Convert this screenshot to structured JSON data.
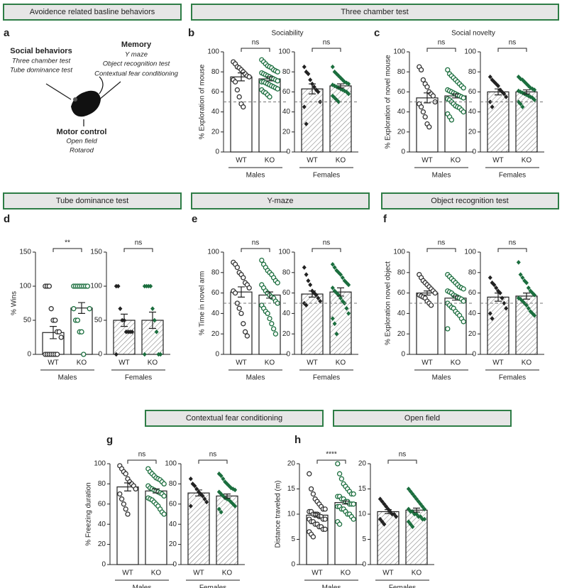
{
  "headers": [
    "Avoidence related basline behaviors",
    "Three chamber test",
    "Tube dominance test",
    "Y-maze",
    "Object recognition test",
    "Contextual fear conditioning",
    "Open field"
  ],
  "diagram": {
    "letter": "a",
    "social": {
      "title": "Social behaviors",
      "items": [
        "Three chamber test",
        "Tube dominance test"
      ]
    },
    "memory": {
      "title": "Memory",
      "items": [
        "Y maze",
        "Object recognition test",
        "Contextual fear conditioning"
      ]
    },
    "motor": {
      "title": "Motor control",
      "items": [
        "Open field",
        "Rotarod"
      ]
    }
  },
  "chart_data": [
    {
      "type": "bar",
      "letter": "b",
      "title": "Sociability",
      "ylabel": "% Exploration of mouse",
      "ylim": [
        0,
        100
      ],
      "yticks": [
        0,
        20,
        40,
        60,
        80,
        100
      ],
      "reference_line": 50,
      "groups": [
        {
          "name": "Males",
          "categories": [
            "WT",
            "KO"
          ],
          "values": [
            75,
            73
          ],
          "errors": [
            4,
            2
          ],
          "significance": "ns",
          "colors": [
            "#333333",
            "#1b6e3e"
          ],
          "marker": "circle",
          "hatch": false,
          "points": [
            [
              90,
              88,
              85,
              84,
              82,
              80,
              78,
              76,
              75,
              72,
              70,
              62,
              55,
              48,
              45
            ],
            [
              92,
              90,
              88,
              86,
              85,
              84,
              82,
              81,
              80,
              79,
              78,
              77,
              76,
              75,
              74,
              73,
              72,
              71,
              70,
              70,
              69,
              68,
              67,
              66,
              65,
              64,
              63,
              62,
              60,
              59,
              57,
              55
            ]
          ]
        },
        {
          "name": "Females",
          "categories": [
            "WT",
            "KO"
          ],
          "values": [
            63,
            66
          ],
          "errors": [
            5,
            2
          ],
          "significance": "ns",
          "colors": [
            "#222222",
            "#1b6e3e"
          ],
          "marker": "diamond",
          "hatch": true,
          "points": [
            [
              85,
              80,
              78,
              72,
              68,
              65,
              62,
              60,
              50,
              45,
              28
            ],
            [
              85,
              80,
              78,
              76,
              74,
              72,
              70,
              69,
              68,
              67,
              66,
              65,
              64,
              63,
              62,
              61,
              60,
              58,
              56,
              54,
              52,
              50
            ]
          ]
        }
      ]
    },
    {
      "type": "bar",
      "letter": "c",
      "title": "Social novelty",
      "ylabel": "% Exploration of novel mouse",
      "ylim": [
        0,
        100
      ],
      "yticks": [
        0,
        20,
        40,
        60,
        80,
        100
      ],
      "reference_line": 50,
      "groups": [
        {
          "name": "Males",
          "categories": [
            "WT",
            "KO"
          ],
          "values": [
            54,
            56
          ],
          "errors": [
            5,
            2
          ],
          "significance": "ns",
          "colors": [
            "#333333",
            "#1b6e3e"
          ],
          "marker": "circle",
          "hatch": false,
          "points": [
            [
              85,
              82,
              72,
              68,
              65,
              60,
              58,
              56,
              50,
              48,
              45,
              40,
              35,
              28,
              25
            ],
            [
              82,
              78,
              76,
              74,
              72,
              70,
              68,
              66,
              64,
              62,
              61,
              60,
              59,
              58,
              57,
              56,
              55,
              54,
              53,
              52,
              50,
              48,
              46,
              45,
              44,
              42,
              40,
              38,
              35,
              32
            ]
          ]
        },
        {
          "name": "Females",
          "categories": [
            "WT",
            "KO"
          ],
          "values": [
            60,
            60
          ],
          "errors": [
            3,
            2
          ],
          "significance": "ns",
          "colors": [
            "#222222",
            "#1b6e3e"
          ],
          "marker": "diamond",
          "hatch": true,
          "points": [
            [
              75,
              72,
              70,
              68,
              66,
              62,
              60,
              58,
              55,
              50,
              45
            ],
            [
              75,
              73,
              72,
              70,
              68,
              66,
              64,
              63,
              62,
              61,
              60,
              59,
              58,
              57,
              56,
              55,
              54,
              52,
              50,
              48,
              45
            ]
          ]
        }
      ]
    },
    {
      "type": "bar",
      "letter": "d",
      "ylabel": "% Wins",
      "ylim": [
        0,
        150
      ],
      "yticks": [
        0,
        50,
        100,
        150
      ],
      "groups": [
        {
          "name": "Males",
          "categories": [
            "WT",
            "KO"
          ],
          "values": [
            32,
            68
          ],
          "errors": [
            9,
            8
          ],
          "significance": "**",
          "colors": [
            "#333333",
            "#1b6e3e"
          ],
          "marker": "circle",
          "hatch": false,
          "points": [
            [
              100,
              100,
              100,
              67,
              50,
              50,
              33,
              33,
              25,
              0,
              0,
              0,
              0,
              0,
              0,
              0
            ],
            [
              100,
              100,
              100,
              100,
              100,
              100,
              100,
              100,
              67,
              67,
              50,
              50,
              33,
              33,
              0
            ]
          ]
        },
        {
          "name": "Females",
          "categories": [
            "WT",
            "KO"
          ],
          "values": [
            50,
            50
          ],
          "errors": [
            9,
            12
          ],
          "significance": "ns",
          "colors": [
            "#222222",
            "#1b6e3e"
          ],
          "marker": "diamond",
          "hatch": true,
          "points": [
            [
              100,
              100,
              67,
              50,
              50,
              33,
              33,
              33,
              33,
              0
            ],
            [
              100,
              100,
              100,
              100,
              67,
              50,
              33,
              0,
              0,
              0
            ]
          ]
        }
      ]
    },
    {
      "type": "bar",
      "letter": "e",
      "ylabel": "% Time in novel arm",
      "ylim": [
        0,
        100
      ],
      "yticks": [
        0,
        20,
        40,
        60,
        80,
        100
      ],
      "reference_line": 50,
      "groups": [
        {
          "name": "Males",
          "categories": [
            "WT",
            "KO"
          ],
          "values": [
            61,
            58
          ],
          "errors": [
            5,
            3
          ],
          "significance": "ns",
          "colors": [
            "#333333",
            "#1b6e3e"
          ],
          "marker": "circle",
          "hatch": false,
          "points": [
            [
              90,
              88,
              85,
              80,
              78,
              75,
              70,
              68,
              65,
              62,
              60,
              50,
              45,
              40,
              30,
              22,
              18
            ],
            [
              92,
              88,
              85,
              82,
              80,
              78,
              75,
              72,
              70,
              68,
              65,
              62,
              60,
              58,
              56,
              55,
              52,
              50,
              48,
              45,
              42,
              40,
              35,
              30,
              25,
              20
            ]
          ]
        },
        {
          "name": "Females",
          "categories": [
            "WT",
            "KO"
          ],
          "values": [
            59,
            61
          ],
          "errors": [
            3,
            4
          ],
          "significance": "ns",
          "colors": [
            "#222222",
            "#1b6e3e"
          ],
          "marker": "diamond",
          "hatch": true,
          "points": [
            [
              85,
              78,
              72,
              68,
              62,
              60,
              58,
              55,
              52,
              50,
              48
            ],
            [
              88,
              85,
              82,
              80,
              78,
              75,
              72,
              70,
              68,
              65,
              62,
              60,
              58,
              55,
              52,
              50,
              45,
              40,
              35,
              30,
              20
            ]
          ]
        }
      ]
    },
    {
      "type": "bar",
      "letter": "f",
      "ylabel": "% Exploration novel object",
      "ylim": [
        0,
        100
      ],
      "yticks": [
        0,
        20,
        40,
        60,
        80,
        100
      ],
      "reference_line": 50,
      "groups": [
        {
          "name": "Males",
          "categories": [
            "WT",
            "KO"
          ],
          "values": [
            60,
            55
          ],
          "errors": [
            2,
            2
          ],
          "significance": "ns",
          "colors": [
            "#333333",
            "#1b6e3e"
          ],
          "marker": "circle",
          "hatch": false,
          "points": [
            [
              78,
              75,
              72,
              70,
              68,
              66,
              64,
              62,
              60,
              58,
              57,
              56,
              55,
              52,
              50,
              48
            ],
            [
              78,
              76,
              74,
              72,
              70,
              68,
              66,
              65,
              64,
              62,
              61,
              60,
              58,
              57,
              56,
              55,
              54,
              52,
              50,
              48,
              46,
              45,
              42,
              40,
              38,
              35,
              32,
              25
            ]
          ]
        },
        {
          "name": "Females",
          "categories": [
            "WT",
            "KO"
          ],
          "values": [
            56,
            57
          ],
          "errors": [
            4,
            3
          ],
          "significance": "ns",
          "colors": [
            "#222222",
            "#1b6e3e"
          ],
          "marker": "diamond",
          "hatch": true,
          "points": [
            [
              75,
              70,
              68,
              65,
              62,
              60,
              55,
              50,
              45,
              40,
              35
            ],
            [
              90,
              78,
              75,
              72,
              70,
              65,
              62,
              60,
              58,
              55,
              54,
              52,
              50,
              48,
              45,
              42,
              40,
              38
            ]
          ]
        }
      ]
    },
    {
      "type": "bar",
      "letter": "g",
      "ylabel": "% Freezing duration",
      "ylim": [
        0,
        100
      ],
      "yticks": [
        0,
        20,
        40,
        60,
        80,
        100
      ],
      "groups": [
        {
          "name": "Males",
          "categories": [
            "WT",
            "KO"
          ],
          "values": [
            77,
            73
          ],
          "errors": [
            4,
            2
          ],
          "significance": "ns",
          "colors": [
            "#333333",
            "#1b6e3e"
          ],
          "marker": "circle",
          "hatch": false,
          "points": [
            [
              98,
              95,
              92,
              90,
              85,
              82,
              80,
              78,
              75,
              70,
              65,
              60,
              55,
              50
            ],
            [
              95,
              92,
              90,
              88,
              86,
              85,
              84,
              82,
              80,
              78,
              76,
              75,
              74,
              73,
              72,
              71,
              70,
              68,
              66,
              65,
              64,
              62,
              60,
              58,
              55,
              52,
              50
            ]
          ]
        },
        {
          "name": "Females",
          "categories": [
            "WT",
            "KO"
          ],
          "values": [
            71,
            68
          ],
          "errors": [
            3,
            2
          ],
          "significance": "ns",
          "colors": [
            "#222222",
            "#1b6e3e"
          ],
          "marker": "diamond",
          "hatch": true,
          "points": [
            [
              85,
              80,
              78,
              75,
              72,
              70,
              68,
              65,
              62,
              58
            ],
            [
              90,
              88,
              85,
              82,
              80,
              78,
              76,
              75,
              74,
              72,
              70,
              68,
              66,
              65,
              64,
              62,
              60,
              58,
              55,
              52
            ]
          ]
        }
      ]
    },
    {
      "type": "bar",
      "letter": "h",
      "ylabel": "Distance traveled (m)",
      "ylim": [
        0,
        20
      ],
      "yticks": [
        0,
        5,
        10,
        15,
        20
      ],
      "groups": [
        {
          "name": "Males",
          "categories": [
            "WT",
            "KO"
          ],
          "values": [
            9.8,
            12.3
          ],
          "errors": [
            0.4,
            0.3
          ],
          "significance": "****",
          "colors": [
            "#333333",
            "#1b6e3e"
          ],
          "marker": "circle",
          "hatch": false,
          "points": [
            [
              18,
              15,
              14,
              13,
              12.5,
              12,
              11.5,
              11,
              11,
              10.5,
              10.5,
              10,
              10,
              10,
              9.5,
              9.5,
              9,
              9,
              9,
              8.5,
              8.5,
              8,
              8,
              7.5,
              7.5,
              7,
              7,
              6.5,
              6,
              5.5
            ],
            [
              20,
              18,
              17,
              16,
              15.5,
              15,
              14.5,
              14,
              14,
              13.5,
              13.5,
              13,
              13,
              12.5,
              12.5,
              12,
              12,
              12,
              11.5,
              11.5,
              11,
              11,
              10.5,
              10,
              10,
              9.5,
              9,
              8.5,
              8
            ]
          ]
        },
        {
          "name": "Females",
          "categories": [
            "WT",
            "KO"
          ],
          "values": [
            10.5,
            10.8
          ],
          "errors": [
            0.4,
            0.4
          ],
          "significance": "ns",
          "colors": [
            "#222222",
            "#1b6e3e"
          ],
          "marker": "diamond",
          "hatch": true,
          "points": [
            [
              13,
              12.5,
              12,
              11.5,
              11,
              10.5,
              10,
              10,
              9.5,
              9,
              8.5,
              8
            ],
            [
              15,
              14.5,
              14,
              13.5,
              13,
              12.5,
              12,
              11.5,
              11,
              11,
              10.5,
              10.5,
              10,
              10,
              9.5,
              9.5,
              9,
              9,
              8.5,
              8,
              7.5
            ]
          ]
        }
      ]
    }
  ]
}
